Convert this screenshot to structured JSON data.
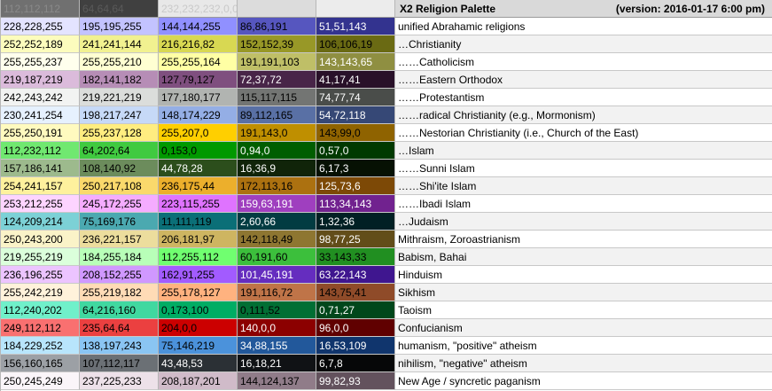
{
  "header": {
    "title": "X2 Religion Palette",
    "version": "(version: 2016-01-17 6:00 pm)",
    "swatches": [
      {
        "text": "112,112,112",
        "bg": "#707070",
        "fg": "#8a8a8a"
      },
      {
        "text": "64,64,64",
        "bg": "#404040",
        "fg": "#5a5a5a"
      },
      {
        "text": "232,232,232,0,0",
        "bg": "#e8e8e8",
        "fg": "#c9c9c9"
      },
      {
        "text": "",
        "bg": "#dcdcdc",
        "fg": "#cccccc"
      },
      {
        "text": "",
        "bg": "#ececec",
        "fg": "#dddddd"
      }
    ]
  },
  "rows": [
    {
      "label": "unified Abrahamic religions",
      "cells": [
        {
          "text": "228,228,255",
          "bg": "#e4e4ff",
          "fg": "#000000"
        },
        {
          "text": "195,195,255",
          "bg": "#c3c3ff",
          "fg": "#000000"
        },
        {
          "text": "144,144,255",
          "bg": "#9090ff",
          "fg": "#000000"
        },
        {
          "text": "86,86,191",
          "bg": "#5656bf",
          "fg": "#000000"
        },
        {
          "text": "51,51,143",
          "bg": "#33338f",
          "fg": "#ffffff"
        }
      ]
    },
    {
      "label": "…Christianity",
      "cells": [
        {
          "text": "252,252,189",
          "bg": "#fcfcbd",
          "fg": "#000000"
        },
        {
          "text": "241,241,144",
          "bg": "#f1f190",
          "fg": "#000000"
        },
        {
          "text": "216,216,82",
          "bg": "#d8d852",
          "fg": "#000000"
        },
        {
          "text": "152,152,39",
          "bg": "#989827",
          "fg": "#000000"
        },
        {
          "text": "106,106,19",
          "bg": "#6a6a13",
          "fg": "#000000"
        }
      ]
    },
    {
      "label": "……Catholicism",
      "cells": [
        {
          "text": "255,255,237",
          "bg": "#ffffed",
          "fg": "#000000"
        },
        {
          "text": "255,255,210",
          "bg": "#ffffd2",
          "fg": "#000000"
        },
        {
          "text": "255,255,164",
          "bg": "#ffffa4",
          "fg": "#000000"
        },
        {
          "text": "191,191,103",
          "bg": "#bfbf67",
          "fg": "#000000"
        },
        {
          "text": "143,143,65",
          "bg": "#8f8f41",
          "fg": "#ffffff"
        }
      ]
    },
    {
      "label": "……Eastern Orthodox",
      "cells": [
        {
          "text": "219,187,219",
          "bg": "#dbbbdb",
          "fg": "#000000"
        },
        {
          "text": "182,141,182",
          "bg": "#b68db6",
          "fg": "#000000"
        },
        {
          "text": "127,79,127",
          "bg": "#7f4f7f",
          "fg": "#000000"
        },
        {
          "text": "72,37,72",
          "bg": "#482548",
          "fg": "#ffffff"
        },
        {
          "text": "41,17,41",
          "bg": "#291129",
          "fg": "#ffffff"
        }
      ]
    },
    {
      "label": "……Protestantism",
      "cells": [
        {
          "text": "242,243,242",
          "bg": "#f2f3f2",
          "fg": "#000000"
        },
        {
          "text": "219,221,219",
          "bg": "#dbdddb",
          "fg": "#000000"
        },
        {
          "text": "177,180,177",
          "bg": "#b1b4b1",
          "fg": "#000000"
        },
        {
          "text": "115,117,115",
          "bg": "#737573",
          "fg": "#000000"
        },
        {
          "text": "74,77,74",
          "bg": "#4a4d4a",
          "fg": "#ffffff"
        }
      ]
    },
    {
      "label": "……radical Christianity (e.g., Mormonism)",
      "cells": [
        {
          "text": "230,241,254",
          "bg": "#e6f1fe",
          "fg": "#000000"
        },
        {
          "text": "198,217,247",
          "bg": "#c6d9f7",
          "fg": "#000000"
        },
        {
          "text": "148,174,229",
          "bg": "#94aee5",
          "fg": "#000000"
        },
        {
          "text": "89,112,165",
          "bg": "#5970a5",
          "fg": "#000000"
        },
        {
          "text": "54,72,118",
          "bg": "#364876",
          "fg": "#ffffff"
        }
      ]
    },
    {
      "label": "……Nestorian Christianity (i.e., Church of the East)",
      "cells": [
        {
          "text": "255,250,191",
          "bg": "#fffabf",
          "fg": "#000000"
        },
        {
          "text": "255,237,128",
          "bg": "#ffed80",
          "fg": "#000000"
        },
        {
          "text": "255,207,0",
          "bg": "#ffcf00",
          "fg": "#000000"
        },
        {
          "text": "191,143,0",
          "bg": "#bf8f00",
          "fg": "#000000"
        },
        {
          "text": "143,99,0",
          "bg": "#8f6300",
          "fg": "#000000"
        }
      ]
    },
    {
      "label": "…Islam",
      "cells": [
        {
          "text": "112,232,112",
          "bg": "#70e870",
          "fg": "#000000"
        },
        {
          "text": "64,202,64",
          "bg": "#40ca40",
          "fg": "#000000"
        },
        {
          "text": "0,153,0",
          "bg": "#009900",
          "fg": "#000000"
        },
        {
          "text": "0,94,0",
          "bg": "#005e00",
          "fg": "#ffffff"
        },
        {
          "text": "0,57,0",
          "bg": "#003900",
          "fg": "#ffffff"
        }
      ]
    },
    {
      "label": "……Sunni Islam",
      "cells": [
        {
          "text": "157,186,141",
          "bg": "#9dba8d",
          "fg": "#000000"
        },
        {
          "text": "108,140,92",
          "bg": "#6c8c5c",
          "fg": "#000000"
        },
        {
          "text": "44,78,28",
          "bg": "#2c4e1c",
          "fg": "#ffffff"
        },
        {
          "text": "16,36,9",
          "bg": "#102409",
          "fg": "#ffffff"
        },
        {
          "text": "6,17,3",
          "bg": "#061103",
          "fg": "#ffffff"
        }
      ]
    },
    {
      "label": "……Shi'ite Islam",
      "cells": [
        {
          "text": "254,241,157",
          "bg": "#fef19d",
          "fg": "#000000"
        },
        {
          "text": "250,217,108",
          "bg": "#fad96c",
          "fg": "#000000"
        },
        {
          "text": "236,175,44",
          "bg": "#ecaf2c",
          "fg": "#000000"
        },
        {
          "text": "172,113,16",
          "bg": "#ac7110",
          "fg": "#000000"
        },
        {
          "text": "125,73,6",
          "bg": "#7d4906",
          "fg": "#ffffff"
        }
      ]
    },
    {
      "label": "……Ibadi Islam",
      "cells": [
        {
          "text": "253,212,255",
          "bg": "#fdd4ff",
          "fg": "#000000"
        },
        {
          "text": "245,172,255",
          "bg": "#f5acff",
          "fg": "#000000"
        },
        {
          "text": "223,115,255",
          "bg": "#df73ff",
          "fg": "#000000"
        },
        {
          "text": "159,63,191",
          "bg": "#9f3fbf",
          "fg": "#ffffff"
        },
        {
          "text": "113,34,143",
          "bg": "#71228f",
          "fg": "#ffffff"
        }
      ]
    },
    {
      "label": "…Judaism",
      "cells": [
        {
          "text": "124,209,214",
          "bg": "#7cd1d6",
          "fg": "#000000"
        },
        {
          "text": "75,169,176",
          "bg": "#4ba9b0",
          "fg": "#000000"
        },
        {
          "text": "11,111,119",
          "bg": "#0b6f77",
          "fg": "#000000"
        },
        {
          "text": "2,60,66",
          "bg": "#023c42",
          "fg": "#ffffff"
        },
        {
          "text": "1,32,36",
          "bg": "#012024",
          "fg": "#ffffff"
        }
      ]
    },
    {
      "label": "Mithraism, Zoroastrianism",
      "cells": [
        {
          "text": "250,243,200",
          "bg": "#faf3c8",
          "fg": "#000000"
        },
        {
          "text": "236,221,157",
          "bg": "#ecdd9d",
          "fg": "#000000"
        },
        {
          "text": "206,181,97",
          "bg": "#ceb561",
          "fg": "#000000"
        },
        {
          "text": "142,118,49",
          "bg": "#8e7631",
          "fg": "#000000"
        },
        {
          "text": "98,77,25",
          "bg": "#624d19",
          "fg": "#ffffff"
        }
      ]
    },
    {
      "label": "Babism, Bahai",
      "cells": [
        {
          "text": "219,255,219",
          "bg": "#dbffdb",
          "fg": "#000000"
        },
        {
          "text": "184,255,184",
          "bg": "#b8ffb8",
          "fg": "#000000"
        },
        {
          "text": "112,255,112",
          "bg": "#70ff70",
          "fg": "#000000"
        },
        {
          "text": "60,191,60",
          "bg": "#3cbf3c",
          "fg": "#000000"
        },
        {
          "text": "33,143,33",
          "bg": "#218f21",
          "fg": "#000000"
        }
      ]
    },
    {
      "label": "Hinduism",
      "cells": [
        {
          "text": "236,196,255",
          "bg": "#ecc4ff",
          "fg": "#000000"
        },
        {
          "text": "208,152,255",
          "bg": "#d098ff",
          "fg": "#000000"
        },
        {
          "text": "162,91,255",
          "bg": "#a25bff",
          "fg": "#000000"
        },
        {
          "text": "101,45,191",
          "bg": "#652dbf",
          "fg": "#ffffff"
        },
        {
          "text": "63,22,143",
          "bg": "#3f168f",
          "fg": "#ffffff"
        }
      ]
    },
    {
      "label": "Sikhism",
      "cells": [
        {
          "text": "255,242,219",
          "bg": "#fff2db",
          "fg": "#000000"
        },
        {
          "text": "255,219,182",
          "bg": "#ffdbb6",
          "fg": "#000000"
        },
        {
          "text": "255,178,127",
          "bg": "#ffb27f",
          "fg": "#000000"
        },
        {
          "text": "191,116,72",
          "bg": "#bf7448",
          "fg": "#000000"
        },
        {
          "text": "143,75,41",
          "bg": "#8f4b29",
          "fg": "#000000"
        }
      ]
    },
    {
      "label": "Taoism",
      "cells": [
        {
          "text": "112,240,202",
          "bg": "#70f0ca",
          "fg": "#000000"
        },
        {
          "text": "64,216,160",
          "bg": "#40d8a0",
          "fg": "#000000"
        },
        {
          "text": "0,173,100",
          "bg": "#00ad64",
          "fg": "#000000"
        },
        {
          "text": "0,111,52",
          "bg": "#006f34",
          "fg": "#000000"
        },
        {
          "text": "0,71,27",
          "bg": "#00471b",
          "fg": "#ffffff"
        }
      ]
    },
    {
      "label": "Confucianism",
      "cells": [
        {
          "text": "249,112,112",
          "bg": "#f97070",
          "fg": "#000000"
        },
        {
          "text": "235,64,64",
          "bg": "#eb4040",
          "fg": "#000000"
        },
        {
          "text": "204,0,0",
          "bg": "#cc0000",
          "fg": "#000000"
        },
        {
          "text": "140,0,0",
          "bg": "#8c0000",
          "fg": "#ffffff"
        },
        {
          "text": "96,0,0",
          "bg": "#600000",
          "fg": "#ffffff"
        }
      ]
    },
    {
      "label": "humanism, \"positive\" atheism",
      "cells": [
        {
          "text": "184,229,252",
          "bg": "#b8e5fc",
          "fg": "#000000"
        },
        {
          "text": "138,197,243",
          "bg": "#8ac5f3",
          "fg": "#000000"
        },
        {
          "text": "75,146,219",
          "bg": "#4b92db",
          "fg": "#000000"
        },
        {
          "text": "34,88,155",
          "bg": "#22589b",
          "fg": "#ffffff"
        },
        {
          "text": "16,53,109",
          "bg": "#10356d",
          "fg": "#ffffff"
        }
      ]
    },
    {
      "label": "nihilism, \"negative\" atheism",
      "cells": [
        {
          "text": "156,160,165",
          "bg": "#9ca0a5",
          "fg": "#000000"
        },
        {
          "text": "107,112,117",
          "bg": "#6b7075",
          "fg": "#000000"
        },
        {
          "text": "43,48,53",
          "bg": "#2b3035",
          "fg": "#ffffff"
        },
        {
          "text": "16,18,21",
          "bg": "#101215",
          "fg": "#ffffff"
        },
        {
          "text": "6,7,8",
          "bg": "#060708",
          "fg": "#ffffff"
        }
      ]
    },
    {
      "label": "New Age / syncretic paganism",
      "cells": [
        {
          "text": "250,245,249",
          "bg": "#faf5f9",
          "fg": "#000000"
        },
        {
          "text": "237,225,233",
          "bg": "#ede1e9",
          "fg": "#000000"
        },
        {
          "text": "208,187,201",
          "bg": "#d0bbc9",
          "fg": "#000000"
        },
        {
          "text": "144,124,137",
          "bg": "#907c89",
          "fg": "#000000"
        },
        {
          "text": "99,82,93",
          "bg": "#63525d",
          "fg": "#ffffff"
        }
      ]
    }
  ]
}
